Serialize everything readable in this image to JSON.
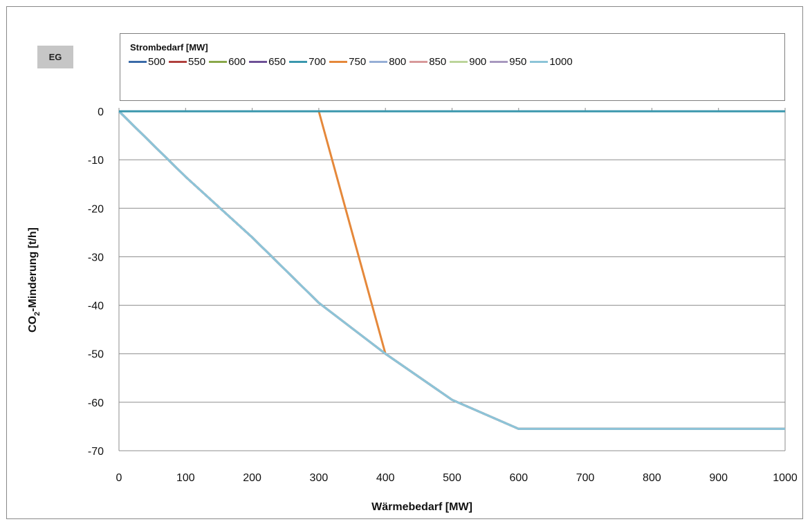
{
  "badge": "EG",
  "chart_data": {
    "type": "line",
    "xlabel": "Wärmebedarf [MW]",
    "ylabel_main": "CO",
    "ylabel_sub": "2",
    "ylabel_rest": "-Minderung [t/h]",
    "legend_title": "Strombedarf [MW]",
    "legend_placement": "top",
    "grid": "horizontal",
    "xlim": [
      0,
      1000
    ],
    "ylim": [
      -70,
      0
    ],
    "x_ticks": [
      0,
      100,
      200,
      300,
      400,
      500,
      600,
      700,
      800,
      900,
      1000
    ],
    "y_ticks": [
      0,
      -10,
      -20,
      -30,
      -40,
      -50,
      -60,
      -70
    ],
    "x": [
      0,
      100,
      200,
      300,
      400,
      500,
      600,
      700,
      800,
      900,
      1000
    ],
    "series": [
      {
        "name": "500",
        "color": "#3a6aa8",
        "values": [
          0,
          -13.5,
          -26,
          -39.5,
          -50,
          -59.5,
          -65.5,
          -65.5,
          -65.5,
          -65.5,
          -65.5
        ]
      },
      {
        "name": "550",
        "color": "#b0403d",
        "values": [
          0,
          -13.5,
          -26,
          -39.5,
          -50,
          -59.5,
          -65.5,
          -65.5,
          -65.5,
          -65.5,
          -65.5
        ]
      },
      {
        "name": "600",
        "color": "#8aa84a",
        "values": [
          0,
          -13.5,
          -26,
          -39.5,
          -50,
          -59.5,
          -65.5,
          -65.5,
          -65.5,
          -65.5,
          -65.5
        ]
      },
      {
        "name": "650",
        "color": "#6e5096",
        "values": [
          0,
          -13.5,
          -26,
          -39.5,
          -50,
          -59.5,
          -65.5,
          -65.5,
          -65.5,
          -65.5,
          -65.5
        ]
      },
      {
        "name": "700",
        "color": "#3a97ad",
        "values": [
          0,
          0,
          0,
          0,
          0,
          0,
          0,
          0,
          0,
          0,
          0
        ]
      },
      {
        "name": "750",
        "color": "#e5883a",
        "values": [
          0,
          0,
          0,
          0,
          -50,
          -59.5,
          -65.5,
          -65.5,
          -65.5,
          -65.5,
          -65.5
        ]
      },
      {
        "name": "800",
        "color": "#96aed6",
        "values": [
          0,
          -13.5,
          -26,
          -39.5,
          -50,
          -59.5,
          -65.5,
          -65.5,
          -65.5,
          -65.5,
          -65.5
        ]
      },
      {
        "name": "850",
        "color": "#d8999a",
        "values": [
          0,
          -13.5,
          -26,
          -39.5,
          -50,
          -59.5,
          -65.5,
          -65.5,
          -65.5,
          -65.5,
          -65.5
        ]
      },
      {
        "name": "900",
        "color": "#bcd59a",
        "values": [
          0,
          -13.5,
          -26,
          -39.5,
          -50,
          -59.5,
          -65.5,
          -65.5,
          -65.5,
          -65.5,
          -65.5
        ]
      },
      {
        "name": "950",
        "color": "#a898bf",
        "values": [
          0,
          -13.5,
          -26,
          -39.5,
          -50,
          -59.5,
          -65.5,
          -65.5,
          -65.5,
          -65.5,
          -65.5
        ]
      },
      {
        "name": "1000",
        "color": "#8cc4d8",
        "values": [
          0,
          -13.5,
          -26,
          -39.5,
          -50,
          -59.5,
          -65.5,
          -65.5,
          -65.5,
          -65.5,
          -65.5
        ]
      }
    ]
  }
}
